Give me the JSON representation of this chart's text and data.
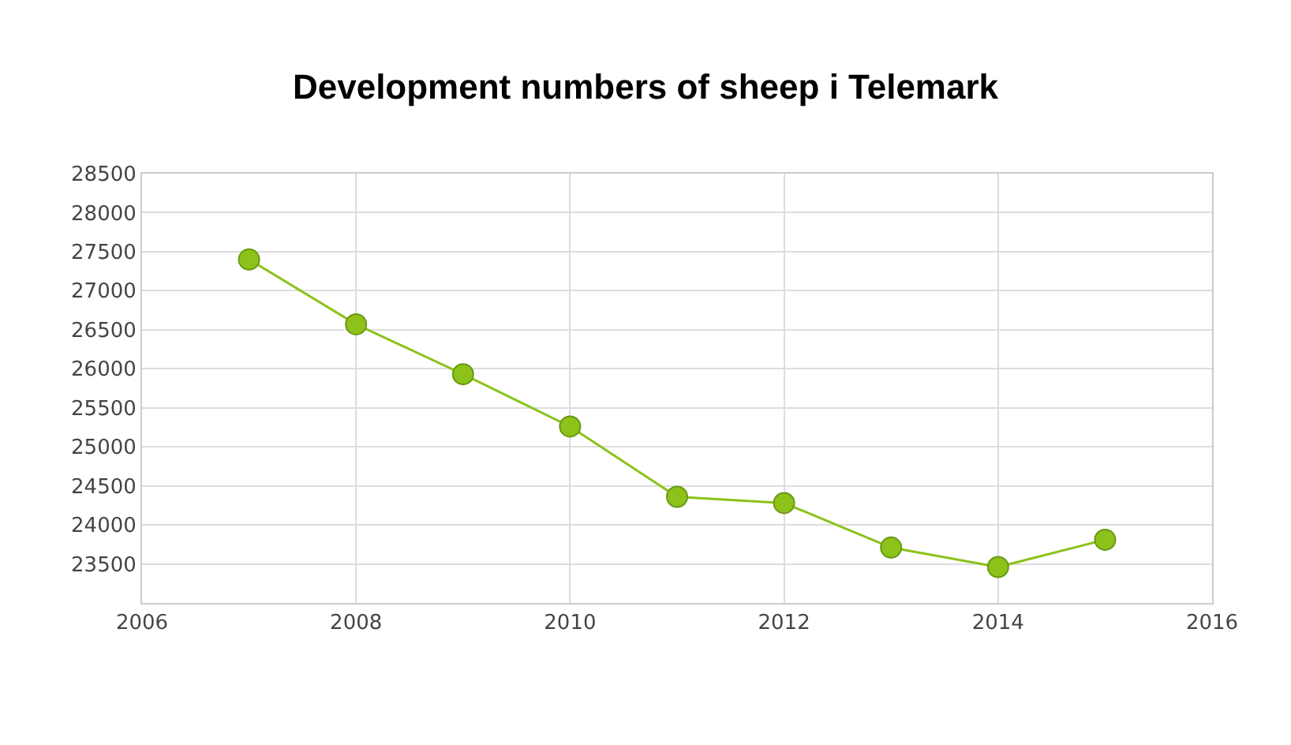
{
  "chart_data": {
    "type": "line",
    "title": "Development numbers of sheep i Telemark",
    "x": [
      2007,
      2008,
      2009,
      2010,
      2011,
      2012,
      2013,
      2014,
      2015
    ],
    "series": [
      {
        "color": "#8cc21a",
        "values": [
          27400,
          26570,
          25930,
          25260,
          24360,
          24280,
          23710,
          23460,
          23810
        ]
      }
    ],
    "xlim": [
      2006,
      2016
    ],
    "xticks": [
      2006,
      2008,
      2010,
      2012,
      2014,
      2016
    ],
    "ylim": [
      23000,
      28500
    ],
    "yticks": [
      23500,
      24000,
      24500,
      25000,
      25500,
      26000,
      26500,
      27000,
      27500,
      28000,
      28500
    ],
    "grid": true,
    "marker": "circle",
    "line_style": "solid"
  }
}
